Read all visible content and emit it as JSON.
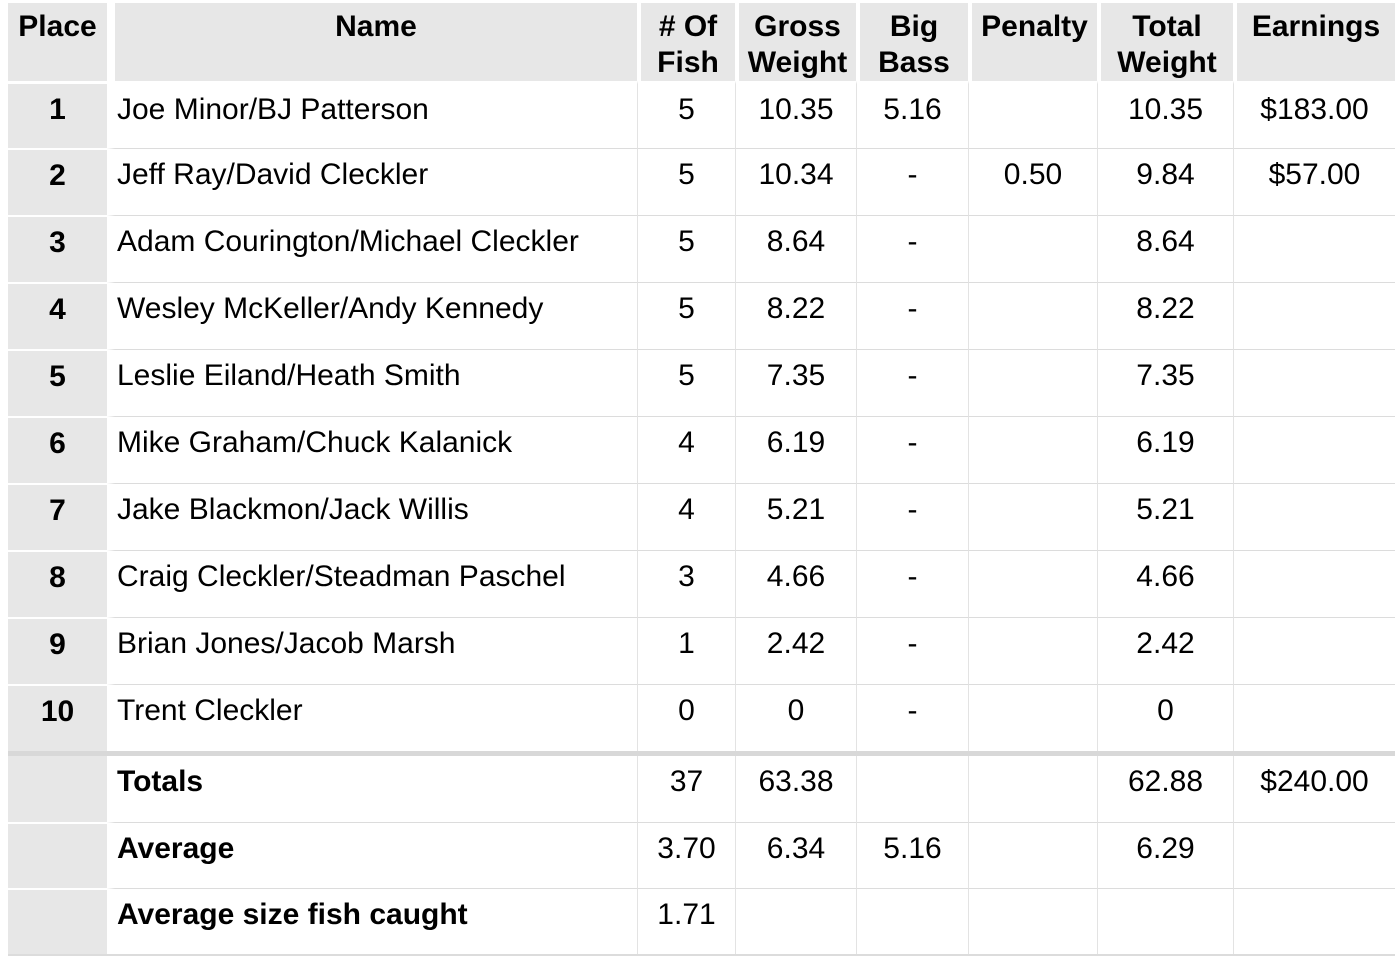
{
  "colors": {
    "background": "#ffffff",
    "header_bg": "#e7e7e7",
    "place_column_bg": "#e7e7e7",
    "row_line": "#dcdcdc",
    "column_line": "#e3e3e3",
    "section_divider": "#d8d8d8",
    "text": "#000000"
  },
  "table": {
    "columns": [
      {
        "key": "place",
        "label": "Place"
      },
      {
        "key": "name",
        "label": "Name"
      },
      {
        "key": "fish",
        "label": "# Of Fish"
      },
      {
        "key": "gross",
        "label": "Gross Weight"
      },
      {
        "key": "big_bass",
        "label": "Big Bass"
      },
      {
        "key": "penalty",
        "label": "Penalty"
      },
      {
        "key": "total",
        "label": "Total Weight"
      },
      {
        "key": "earnings",
        "label": "Earnings"
      }
    ],
    "rows": [
      {
        "place": "1",
        "name": "Joe Minor/BJ Patterson",
        "fish": "5",
        "gross": "10.35",
        "big_bass": "5.16",
        "penalty": "",
        "total": "10.35",
        "earnings": "$183.00"
      },
      {
        "place": "2",
        "name": "Jeff Ray/David Cleckler",
        "fish": "5",
        "gross": "10.34",
        "big_bass": "-",
        "penalty": "0.50",
        "total": "9.84",
        "earnings": "$57.00"
      },
      {
        "place": "3",
        "name": "Adam Courington/Michael Cleckler",
        "fish": "5",
        "gross": "8.64",
        "big_bass": "-",
        "penalty": "",
        "total": "8.64",
        "earnings": ""
      },
      {
        "place": "4",
        "name": "Wesley McKeller/Andy Kennedy",
        "fish": "5",
        "gross": "8.22",
        "big_bass": "-",
        "penalty": "",
        "total": "8.22",
        "earnings": ""
      },
      {
        "place": "5",
        "name": "Leslie Eiland/Heath Smith",
        "fish": "5",
        "gross": "7.35",
        "big_bass": "-",
        "penalty": "",
        "total": "7.35",
        "earnings": ""
      },
      {
        "place": "6",
        "name": "Mike Graham/Chuck Kalanick",
        "fish": "4",
        "gross": "6.19",
        "big_bass": "-",
        "penalty": "",
        "total": "6.19",
        "earnings": ""
      },
      {
        "place": "7",
        "name": "Jake Blackmon/Jack Willis",
        "fish": "4",
        "gross": "5.21",
        "big_bass": "-",
        "penalty": "",
        "total": "5.21",
        "earnings": ""
      },
      {
        "place": "8",
        "name": "Craig Cleckler/Steadman Paschel",
        "fish": "3",
        "gross": "4.66",
        "big_bass": "-",
        "penalty": "",
        "total": "4.66",
        "earnings": ""
      },
      {
        "place": "9",
        "name": "Brian Jones/Jacob Marsh",
        "fish": "1",
        "gross": "2.42",
        "big_bass": "-",
        "penalty": "",
        "total": "2.42",
        "earnings": ""
      },
      {
        "place": "10",
        "name": "Trent Cleckler",
        "fish": "0",
        "gross": "0",
        "big_bass": "-",
        "penalty": "",
        "total": "0",
        "earnings": ""
      }
    ],
    "summary": [
      {
        "label": "Totals",
        "fish": "37",
        "gross": "63.38",
        "big_bass": "",
        "penalty": "",
        "total": "62.88",
        "earnings": "$240.00"
      },
      {
        "label": "Average",
        "fish": "3.70",
        "gross": "6.34",
        "big_bass": "5.16",
        "penalty": "",
        "total": "6.29",
        "earnings": ""
      },
      {
        "label": "Average size fish caught",
        "fish": "1.71",
        "gross": "",
        "big_bass": "",
        "penalty": "",
        "total": "",
        "earnings": ""
      }
    ]
  }
}
